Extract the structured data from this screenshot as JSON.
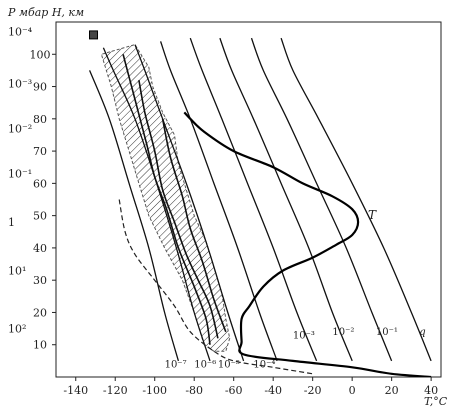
{
  "chart_data": {
    "type": "line",
    "title": "",
    "axes": {
      "top_left_label": "P мбар H, км",
      "x_unit_label": "T,°C",
      "x_ticks": [
        -140,
        -120,
        -100,
        -80,
        -60,
        -40,
        -20,
        0,
        20,
        40
      ],
      "xlim": [
        -150,
        45
      ],
      "height_ticks_km": [
        10,
        20,
        30,
        40,
        50,
        60,
        70,
        80,
        90,
        100
      ],
      "height_range_km": [
        0,
        110
      ],
      "pressure_ticks": [
        {
          "label": "10⁻⁴",
          "h": 107
        },
        {
          "label": "10⁻³",
          "h": 91
        },
        {
          "label": "10⁻²",
          "h": 77
        },
        {
          "label": "10⁻¹",
          "h": 63
        },
        {
          "label": "1",
          "h": 48
        },
        {
          "label": "10¹",
          "h": 33
        },
        {
          "label": "10²",
          "h": 15
        }
      ]
    },
    "temperature_profile": {
      "name": "T",
      "points": [
        {
          "t": 40,
          "h": 0
        },
        {
          "t": 20,
          "h": 1
        },
        {
          "t": 0,
          "h": 3
        },
        {
          "t": -30,
          "h": 5
        },
        {
          "t": -55,
          "h": 7
        },
        {
          "t": -56,
          "h": 11
        },
        {
          "t": -56,
          "h": 18
        },
        {
          "t": -52,
          "h": 22
        },
        {
          "t": -45,
          "h": 28
        },
        {
          "t": -35,
          "h": 33
        },
        {
          "t": -20,
          "h": 37
        },
        {
          "t": -8,
          "h": 41
        },
        {
          "t": 0,
          "h": 44
        },
        {
          "t": 3,
          "h": 48
        },
        {
          "t": 0,
          "h": 52
        },
        {
          "t": -10,
          "h": 56
        },
        {
          "t": -25,
          "h": 60
        },
        {
          "t": -40,
          "h": 65
        },
        {
          "t": -60,
          "h": 70
        },
        {
          "t": -75,
          "h": 76
        },
        {
          "t": -82,
          "h": 80
        },
        {
          "t": -85,
          "h": 82
        }
      ]
    },
    "mixing_ratio_isolines": [
      {
        "label": "10⁻⁷",
        "points": [
          {
            "t": -88,
            "h": 5
          },
          {
            "t": -95,
            "h": 20
          },
          {
            "t": -103,
            "h": 40
          },
          {
            "t": -113,
            "h": 60
          },
          {
            "t": -123,
            "h": 80
          },
          {
            "t": -133,
            "h": 95
          }
        ]
      },
      {
        "label": "10⁻⁶",
        "points": [
          {
            "t": -72,
            "h": 5
          },
          {
            "t": -80,
            "h": 20
          },
          {
            "t": -89,
            "h": 40
          },
          {
            "t": -99,
            "h": 60
          },
          {
            "t": -110,
            "h": 80
          },
          {
            "t": -121,
            "h": 95
          },
          {
            "t": -126,
            "h": 102
          }
        ]
      },
      {
        "label": "10⁻⁵",
        "points": [
          {
            "t": -55,
            "h": 5
          },
          {
            "t": -63,
            "h": 20
          },
          {
            "t": -73,
            "h": 40
          },
          {
            "t": -84,
            "h": 60
          },
          {
            "t": -96,
            "h": 80
          },
          {
            "t": -105,
            "h": 95
          },
          {
            "t": -110,
            "h": 103
          }
        ]
      },
      {
        "label": "10⁻⁴",
        "points": [
          {
            "t": -38,
            "h": 5
          },
          {
            "t": -47,
            "h": 20
          },
          {
            "t": -58,
            "h": 40
          },
          {
            "t": -70,
            "h": 60
          },
          {
            "t": -82,
            "h": 80
          },
          {
            "t": -92,
            "h": 95
          },
          {
            "t": -97,
            "h": 104
          }
        ]
      },
      {
        "label": "10⁻³",
        "points": [
          {
            "t": -18,
            "h": 5
          },
          {
            "t": -28,
            "h": 20
          },
          {
            "t": -40,
            "h": 40
          },
          {
            "t": -53,
            "h": 60
          },
          {
            "t": -66,
            "h": 80
          },
          {
            "t": -76,
            "h": 95
          },
          {
            "t": -82,
            "h": 105
          }
        ]
      },
      {
        "label": "10⁻²",
        "points": [
          {
            "t": 0,
            "h": 5
          },
          {
            "t": -10,
            "h": 20
          },
          {
            "t": -22,
            "h": 40
          },
          {
            "t": -36,
            "h": 60
          },
          {
            "t": -50,
            "h": 80
          },
          {
            "t": -61,
            "h": 95
          },
          {
            "t": -67,
            "h": 105
          }
        ]
      },
      {
        "label": "10⁻¹",
        "points": [
          {
            "t": 20,
            "h": 5
          },
          {
            "t": 10,
            "h": 20
          },
          {
            "t": -3,
            "h": 40
          },
          {
            "t": -18,
            "h": 60
          },
          {
            "t": -33,
            "h": 80
          },
          {
            "t": -45,
            "h": 95
          },
          {
            "t": -51,
            "h": 105
          }
        ]
      },
      {
        "label": "q",
        "points": [
          {
            "t": 40,
            "h": 5
          },
          {
            "t": 30,
            "h": 20
          },
          {
            "t": 16,
            "h": 40
          },
          {
            "t": 0,
            "h": 60
          },
          {
            "t": -17,
            "h": 80
          },
          {
            "t": -30,
            "h": 95
          },
          {
            "t": -36,
            "h": 105
          }
        ]
      }
    ],
    "hatched_region": {
      "left_edge": [
        {
          "t": -75,
          "h": 10
        },
        {
          "t": -80,
          "h": 20
        },
        {
          "t": -86,
          "h": 30
        },
        {
          "t": -95,
          "h": 40
        },
        {
          "t": -103,
          "h": 50
        },
        {
          "t": -108,
          "h": 60
        },
        {
          "t": -113,
          "h": 70
        },
        {
          "t": -118,
          "h": 80
        },
        {
          "t": -122,
          "h": 90
        },
        {
          "t": -127,
          "h": 100
        }
      ],
      "right_edge": [
        {
          "t": -110,
          "h": 103
        },
        {
          "t": -103,
          "h": 96
        },
        {
          "t": -101,
          "h": 90
        },
        {
          "t": -96,
          "h": 82
        },
        {
          "t": -90,
          "h": 75
        },
        {
          "t": -88,
          "h": 66
        },
        {
          "t": -84,
          "h": 58
        },
        {
          "t": -80,
          "h": 50
        },
        {
          "t": -74,
          "h": 42
        },
        {
          "t": -70,
          "h": 34
        },
        {
          "t": -66,
          "h": 26
        },
        {
          "t": -64,
          "h": 18
        },
        {
          "t": -62,
          "h": 12
        },
        {
          "t": -64,
          "h": 8
        },
        {
          "t": -70,
          "h": 8
        }
      ]
    },
    "observation_curves": [
      [
        {
          "t": -68,
          "h": 12
        },
        {
          "t": -72,
          "h": 22
        },
        {
          "t": -78,
          "h": 30
        },
        {
          "t": -84,
          "h": 38
        },
        {
          "t": -90,
          "h": 48
        },
        {
          "t": -96,
          "h": 58
        },
        {
          "t": -100,
          "h": 70
        },
        {
          "t": -105,
          "h": 82
        },
        {
          "t": -108,
          "h": 92
        }
      ],
      [
        {
          "t": -72,
          "h": 10
        },
        {
          "t": -74,
          "h": 18
        },
        {
          "t": -80,
          "h": 28
        },
        {
          "t": -88,
          "h": 40
        },
        {
          "t": -94,
          "h": 52
        },
        {
          "t": -100,
          "h": 62
        },
        {
          "t": -104,
          "h": 72
        },
        {
          "t": -110,
          "h": 86
        },
        {
          "t": -116,
          "h": 100
        }
      ],
      [
        {
          "t": -64,
          "h": 14
        },
        {
          "t": -70,
          "h": 24
        },
        {
          "t": -76,
          "h": 36
        },
        {
          "t": -82,
          "h": 46
        },
        {
          "t": -86,
          "h": 56
        },
        {
          "t": -92,
          "h": 68
        },
        {
          "t": -96,
          "h": 80
        }
      ]
    ],
    "dashed_boundary": [
      {
        "t": -118,
        "h": 55
      },
      {
        "t": -115,
        "h": 45
      },
      {
        "t": -110,
        "h": 38
      },
      {
        "t": -100,
        "h": 30
      },
      {
        "t": -90,
        "h": 22
      },
      {
        "t": -82,
        "h": 14
      },
      {
        "t": -70,
        "h": 8
      },
      {
        "t": -60,
        "h": 5
      },
      {
        "t": -40,
        "h": 3
      },
      {
        "t": -20,
        "h": 1
      }
    ],
    "legend": {
      "T": "T",
      "q": "q"
    }
  }
}
